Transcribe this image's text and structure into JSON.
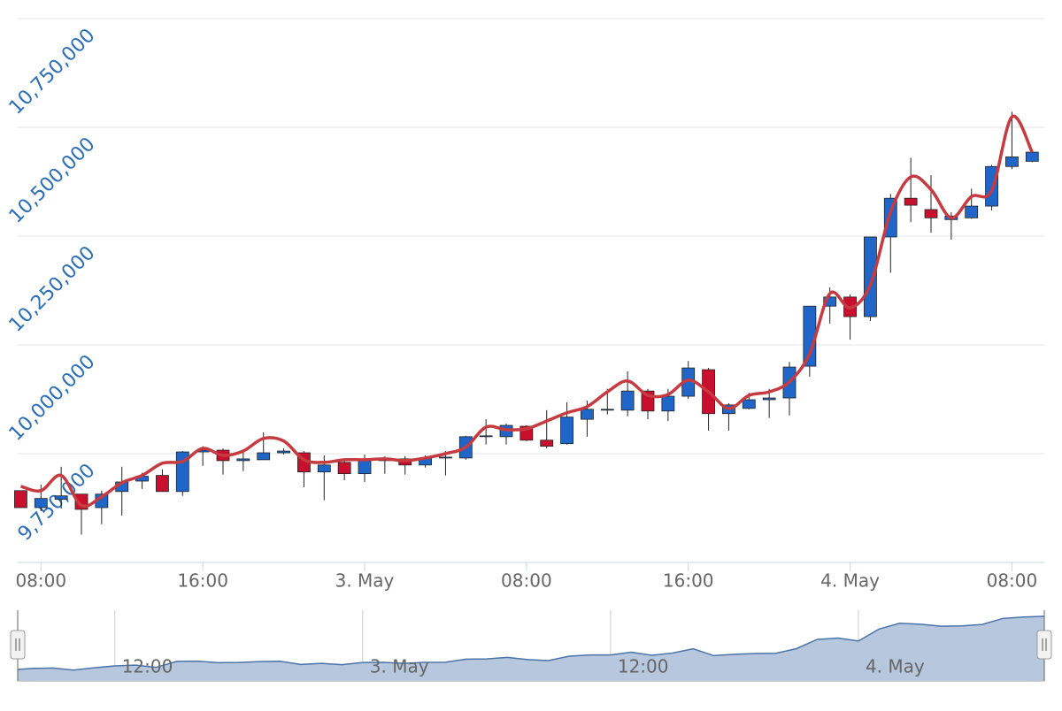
{
  "chart_data": {
    "type": "candlestick",
    "x": [
      -17,
      -16,
      -15,
      -14,
      -13,
      -12,
      -11,
      -10,
      -9,
      -8,
      -7,
      -6,
      -5,
      -4,
      -3,
      -2,
      -1,
      0,
      1,
      2,
      3,
      4,
      5,
      6,
      7,
      8,
      9,
      10,
      11,
      12,
      13,
      14,
      15,
      16,
      17,
      18,
      19,
      20,
      21,
      22,
      23,
      24,
      25,
      26,
      27,
      28,
      29,
      30,
      31,
      32,
      33
    ],
    "open": [
      9665000,
      9626000,
      9645000,
      9657000,
      9626000,
      9663000,
      9687000,
      9700000,
      9663000,
      9754000,
      9758000,
      9734000,
      9736000,
      9752000,
      9752000,
      9708000,
      9730000,
      9704000,
      9734000,
      9738000,
      9724000,
      9740000,
      9740000,
      9789000,
      9789000,
      9813000,
      9781000,
      9773000,
      9829000,
      9850000,
      9850000,
      9894000,
      9848000,
      9882000,
      9943000,
      9842000,
      9854000,
      9874000,
      9878000,
      9951000,
      10089000,
      10110000,
      10065000,
      10248000,
      10337000,
      10311000,
      10288000,
      10292000,
      10319000,
      10410000,
      10422000
    ],
    "high": [
      9665000,
      9679000,
      9720000,
      9657000,
      9665000,
      9720000,
      9706000,
      9714000,
      9756000,
      9767000,
      9762000,
      9754000,
      9799000,
      9762000,
      9756000,
      9746000,
      9734000,
      9748000,
      9744000,
      9744000,
      9746000,
      9756000,
      9791000,
      9829000,
      9819000,
      9815000,
      9850000,
      9868000,
      9872000,
      9899000,
      9939000,
      9899000,
      9899000,
      9963000,
      9947000,
      9866000,
      9890000,
      9899000,
      9961000,
      10089000,
      10132000,
      10116000,
      10248000,
      10347000,
      10430000,
      10390000,
      10305000,
      10359000,
      10414000,
      10536000,
      10447000
    ],
    "low": [
      9626000,
      9618000,
      9624000,
      9564000,
      9588000,
      9608000,
      9669000,
      9663000,
      9653000,
      9722000,
      9702000,
      9710000,
      9736000,
      9748000,
      9673000,
      9643000,
      9689000,
      9685000,
      9704000,
      9702000,
      9718000,
      9700000,
      9736000,
      9771000,
      9771000,
      9779000,
      9762000,
      9771000,
      9789000,
      9840000,
      9836000,
      9829000,
      9825000,
      9876000,
      9803000,
      9803000,
      9852000,
      9832000,
      9838000,
      9927000,
      10049000,
      10012000,
      10055000,
      10166000,
      10282000,
      10258000,
      10242000,
      10290000,
      10309000,
      10404000,
      10420000
    ],
    "close": [
      9626000,
      9647000,
      9653000,
      9622000,
      9657000,
      9685000,
      9698000,
      9663000,
      9754000,
      9758000,
      9734000,
      9738000,
      9752000,
      9756000,
      9708000,
      9724000,
      9704000,
      9738000,
      9740000,
      9724000,
      9740000,
      9742000,
      9789000,
      9791000,
      9815000,
      9781000,
      9767000,
      9834000,
      9852000,
      9852000,
      9894000,
      9848000,
      9882000,
      9947000,
      9842000,
      9862000,
      9874000,
      9878000,
      9949000,
      10089000,
      10110000,
      10065000,
      10248000,
      10337000,
      10321000,
      10292000,
      10296000,
      10319000,
      10410000,
      10432000,
      10443000
    ],
    "up_color": "#1f66c8",
    "down_color": "#c8102e",
    "line": {
      "color": "#c73a40",
      "values": [
        9675000,
        9665000,
        9700000,
        9631000,
        9651000,
        9683000,
        9700000,
        9728000,
        9732000,
        9762000,
        9746000,
        9756000,
        9785000,
        9779000,
        9736000,
        9730000,
        9736000,
        9736000,
        9738000,
        9734000,
        9740000,
        9750000,
        9765000,
        9811000,
        9805000,
        9807000,
        9825000,
        9844000,
        9858000,
        9892000,
        9917000,
        9884000,
        9886000,
        9919000,
        9892000,
        9854000,
        9884000,
        9892000,
        9915000,
        9980000,
        10118000,
        10085000,
        10138000,
        10305000,
        10386000,
        10357000,
        10292000,
        10341000,
        10355000,
        10524000,
        10443000
      ]
    },
    "xlim": [
      -17.15,
      33.6
    ],
    "xticks": [
      {
        "value": -16,
        "label": "08:00"
      },
      {
        "value": -8,
        "label": "16:00"
      },
      {
        "value": 0,
        "label": "3. May"
      },
      {
        "value": 8,
        "label": "08:00"
      },
      {
        "value": 16,
        "label": "16:00"
      },
      {
        "value": 24,
        "label": "4. May"
      },
      {
        "value": 32,
        "label": "08:00"
      }
    ],
    "ylim": [
      9500000,
      10750000
    ],
    "yticks": [
      {
        "value": 9750000,
        "label": "9,750,000"
      },
      {
        "value": 10000000,
        "label": "10,000,000"
      },
      {
        "value": 10250000,
        "label": "10,250,000"
      },
      {
        "value": 10500000,
        "label": "10,500,000"
      },
      {
        "value": 10750000,
        "label": "10,750,000"
      }
    ],
    "grid": true,
    "navigator": {
      "xlim": [
        -16.7,
        33
      ],
      "xticks": [
        {
          "value": -12,
          "label": "12:00"
        },
        {
          "value": 0,
          "label": "3. May"
        },
        {
          "value": 12,
          "label": "12:00"
        },
        {
          "value": 24,
          "label": "4. May"
        }
      ],
      "color": "#b7c7de",
      "line_color": "#4a74aa"
    }
  }
}
